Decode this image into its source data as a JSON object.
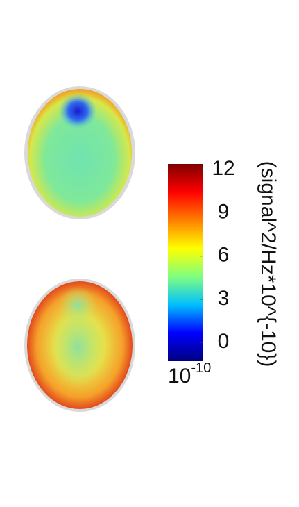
{
  "chart_data": {
    "type": "colorbar",
    "colorbar_label": "(signal^2/Hz*10^{-10})",
    "offset_base": "10",
    "offset_exponent": "-10",
    "ylim": [
      -1.3,
      12.4
    ],
    "yticks": [
      0,
      3,
      6,
      9,
      12
    ],
    "colormap": [
      "#00007f",
      "#0000ff",
      "#00bfff",
      "#7fff7f",
      "#ffff00",
      "#ff7f00",
      "#ff0000",
      "#7f0000"
    ]
  }
}
